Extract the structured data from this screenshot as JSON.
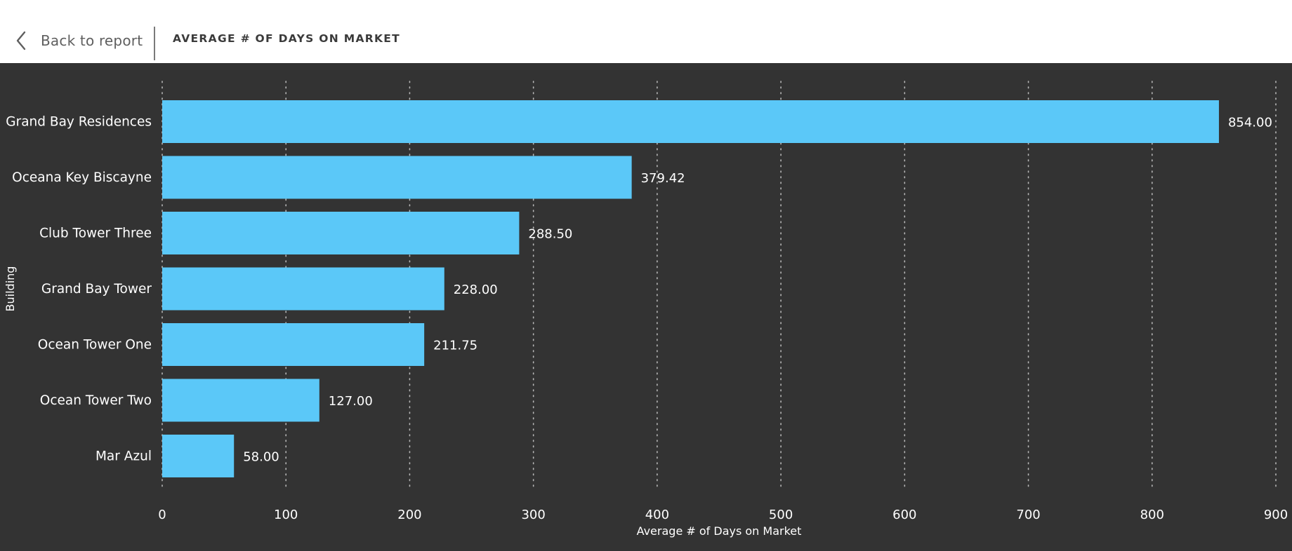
{
  "header": {
    "back_label": "Back to report",
    "title": "AVERAGE # OF DAYS ON MARKET"
  },
  "colors": {
    "bar": "#5BC8F8",
    "background": "#333333",
    "grid": "#b8b8b8",
    "text": "#ffffff"
  },
  "chart_data": {
    "type": "bar",
    "orientation": "horizontal",
    "categories": [
      "Grand Bay Residences",
      "Oceana Key Biscayne",
      "Club Tower Three",
      "Grand Bay Tower",
      "Ocean Tower One",
      "Ocean Tower Two",
      "Mar Azul"
    ],
    "values": [
      854.0,
      379.42,
      288.5,
      228.0,
      211.75,
      127.0,
      58.0
    ],
    "data_labels": [
      "854.00",
      "379.42",
      "288.50",
      "228.00",
      "211.75",
      "127.00",
      "58.00"
    ],
    "xlabel": "Average # of Days on Market",
    "ylabel": "Building",
    "xlim": [
      0,
      900
    ],
    "xticks": [
      0,
      100,
      200,
      300,
      400,
      500,
      600,
      700,
      800,
      900
    ],
    "grid": "vertical dotted"
  }
}
